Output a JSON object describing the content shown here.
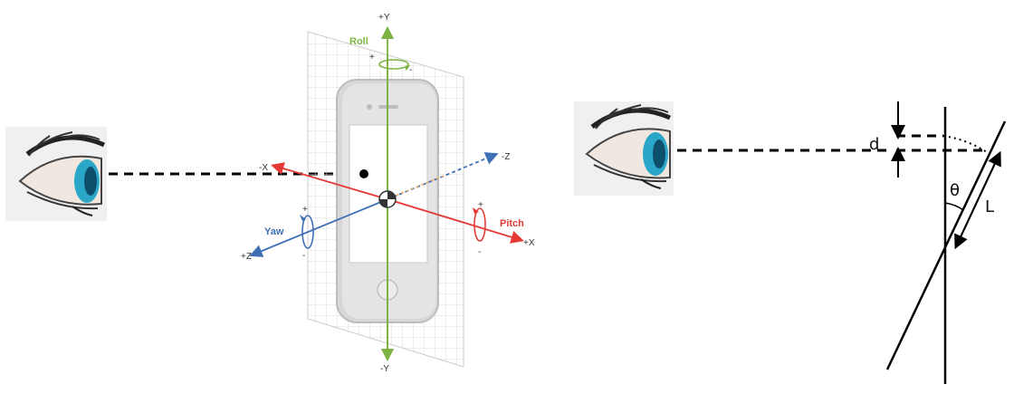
{
  "left_figure": {
    "axis_labels": {
      "pos_y": "+Y",
      "neg_y": "-Y",
      "pos_x": "+X",
      "neg_x": "-X",
      "pos_z": "+Z",
      "neg_z": "-Z"
    },
    "rotations": {
      "roll": {
        "label": "Roll",
        "plus": "+",
        "minus": "-",
        "color": "#7cb342"
      },
      "pitch": {
        "label": "Pitch",
        "plus": "+",
        "minus": "-",
        "color": "#e53935"
      },
      "yaw": {
        "label": "Yaw",
        "plus": "+",
        "minus": "-",
        "color": "#3f6fb5"
      }
    },
    "icons": [
      "eye-icon",
      "phone-icon"
    ]
  },
  "right_figure": {
    "labels": {
      "d": "d",
      "theta": "θ",
      "L": "L"
    },
    "icons": [
      "eye-icon"
    ]
  }
}
